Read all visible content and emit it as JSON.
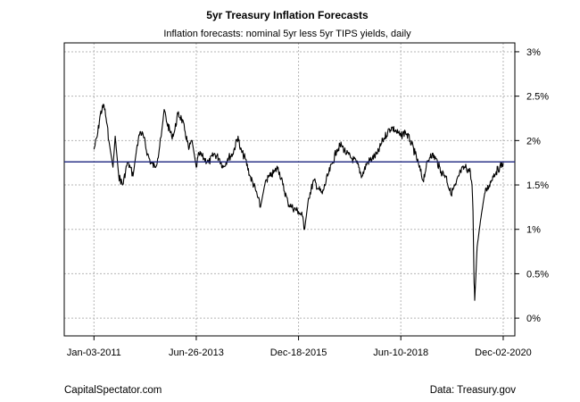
{
  "chart_data": {
    "type": "line",
    "title": "5yr Treasury Inflation Forecasts",
    "subtitle": "Inflation forecasts: nominal 5yr less 5yr TIPS yields, daily",
    "xlabel": "",
    "ylabel": "",
    "x_ticks": [
      "Jan-03-2011",
      "Jun-26-2013",
      "Dec-18-2015",
      "Jun-10-2018",
      "Dec-02-2020"
    ],
    "y_ticks": [
      "0%",
      "0.5%",
      "1%",
      "1.5%",
      "2%",
      "2.5%",
      "3%"
    ],
    "ylim": [
      -0.002,
      0.031
    ],
    "xlim": [
      "2010-04-15",
      "2021-03-15"
    ],
    "grid": true,
    "reference_line": {
      "value": 0.0176,
      "color": "#1a237e"
    },
    "series": [
      {
        "color": "#000000",
        "x": [
          "2011-01-03",
          "2011-02-01",
          "2011-03-01",
          "2011-04-01",
          "2011-04-20",
          "2011-05-15",
          "2011-06-20",
          "2011-07-10",
          "2011-08-10",
          "2011-09-15",
          "2011-10-25",
          "2011-11-20",
          "2011-12-15",
          "2012-01-20",
          "2012-02-15",
          "2012-03-15",
          "2012-04-20",
          "2012-05-20",
          "2012-06-25",
          "2012-07-20",
          "2012-08-20",
          "2012-09-15",
          "2012-10-10",
          "2012-11-20",
          "2012-12-15",
          "2013-01-15",
          "2013-02-15",
          "2013-03-20",
          "2013-04-20",
          "2013-05-20",
          "2013-06-26",
          "2013-07-20",
          "2013-09-01",
          "2013-10-15",
          "2013-12-01",
          "2014-01-15",
          "2014-02-20",
          "2014-04-01",
          "2014-05-15",
          "2014-07-01",
          "2014-07-20",
          "2014-09-01",
          "2014-10-15",
          "2014-12-01",
          "2015-01-15",
          "2015-03-01",
          "2015-04-15",
          "2015-05-20",
          "2015-06-20",
          "2015-08-01",
          "2015-09-15",
          "2015-10-20",
          "2015-12-18",
          "2016-01-20",
          "2016-02-10",
          "2016-03-15",
          "2016-05-01",
          "2016-06-15",
          "2016-07-15",
          "2016-09-01",
          "2016-10-15",
          "2016-11-20",
          "2017-01-01",
          "2017-02-15",
          "2017-04-01",
          "2017-05-15",
          "2017-07-01",
          "2017-08-15",
          "2017-10-01",
          "2017-11-15",
          "2018-01-01",
          "2018-02-15",
          "2018-03-20",
          "2018-05-01",
          "2018-06-10",
          "2018-07-20",
          "2018-09-01",
          "2018-10-15",
          "2018-11-20",
          "2018-12-24",
          "2019-01-20",
          "2019-03-01",
          "2019-04-15",
          "2019-06-01",
          "2019-07-15",
          "2019-08-25",
          "2019-10-10",
          "2019-11-20",
          "2020-01-01",
          "2020-02-15",
          "2020-03-01",
          "2020-03-10",
          "2020-03-19",
          "2020-03-25",
          "2020-04-15",
          "2020-05-15",
          "2020-06-20",
          "2020-08-01",
          "2020-09-01",
          "2020-10-01",
          "2020-11-01",
          "2020-12-02"
        ],
        "y": [
          0.019,
          0.0205,
          0.023,
          0.024,
          0.0225,
          0.02,
          0.017,
          0.0205,
          0.016,
          0.015,
          0.0175,
          0.017,
          0.016,
          0.0195,
          0.021,
          0.0205,
          0.0185,
          0.0175,
          0.017,
          0.018,
          0.0205,
          0.0235,
          0.022,
          0.0205,
          0.021,
          0.023,
          0.0225,
          0.021,
          0.019,
          0.02,
          0.017,
          0.0185,
          0.018,
          0.0175,
          0.0185,
          0.018,
          0.017,
          0.018,
          0.0185,
          0.0205,
          0.019,
          0.018,
          0.016,
          0.0145,
          0.0125,
          0.0155,
          0.016,
          0.0165,
          0.017,
          0.015,
          0.013,
          0.0125,
          0.012,
          0.0115,
          0.01,
          0.0135,
          0.0155,
          0.0145,
          0.014,
          0.016,
          0.0175,
          0.019,
          0.0195,
          0.0185,
          0.018,
          0.0175,
          0.016,
          0.0175,
          0.018,
          0.0185,
          0.02,
          0.021,
          0.0215,
          0.021,
          0.0205,
          0.021,
          0.02,
          0.0185,
          0.017,
          0.0155,
          0.017,
          0.0185,
          0.018,
          0.0165,
          0.016,
          0.014,
          0.015,
          0.0165,
          0.017,
          0.0165,
          0.015,
          0.012,
          0.004,
          0.002,
          0.008,
          0.011,
          0.014,
          0.015,
          0.016,
          0.0165,
          0.017,
          0.0175
        ]
      }
    ]
  },
  "footer": {
    "source_left": "CapitalSpectator.com",
    "source_right": "Data: Treasury.gov"
  }
}
